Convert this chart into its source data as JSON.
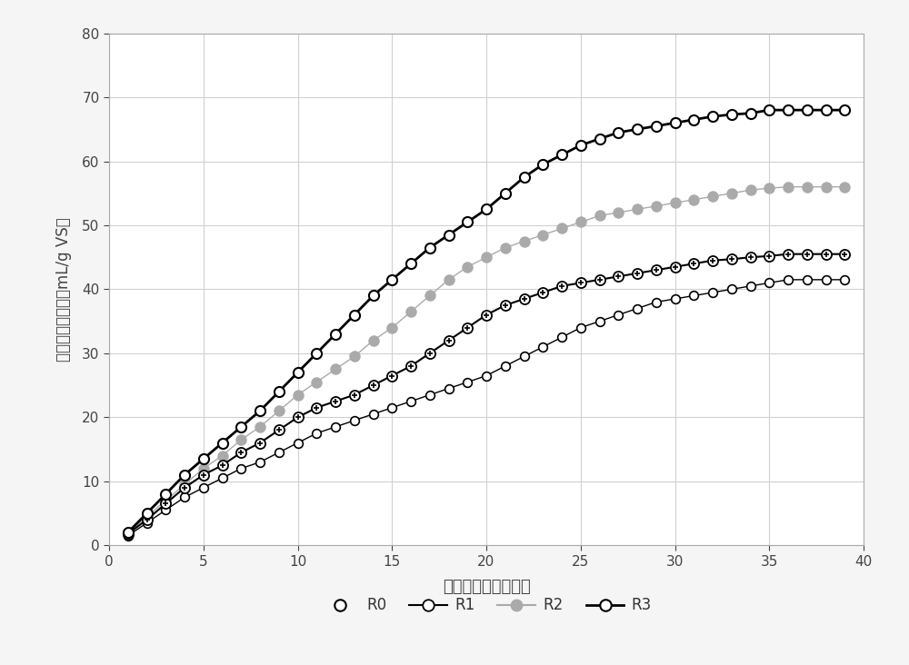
{
  "R0": {
    "x": [
      1,
      2,
      3,
      4,
      5,
      6,
      7,
      8,
      9,
      10,
      11,
      12,
      13,
      14,
      15,
      16,
      17,
      18,
      19,
      20,
      21,
      22,
      23,
      24,
      25,
      26,
      27,
      28,
      29,
      30,
      31,
      32,
      33,
      34,
      35,
      36,
      37,
      38,
      39
    ],
    "y": [
      1.5,
      3.5,
      5.5,
      7.5,
      9.0,
      10.5,
      12.0,
      13.0,
      14.5,
      16.0,
      17.5,
      18.5,
      19.5,
      20.5,
      21.5,
      22.5,
      23.5,
      24.5,
      25.5,
      26.5,
      28.0,
      29.5,
      31.0,
      32.5,
      34.0,
      35.0,
      36.0,
      37.0,
      38.0,
      38.5,
      39.0,
      39.5,
      40.0,
      40.5,
      41.0,
      41.5,
      41.5,
      41.5,
      41.5
    ]
  },
  "R1": {
    "x": [
      1,
      2,
      3,
      4,
      5,
      6,
      7,
      8,
      9,
      10,
      11,
      12,
      13,
      14,
      15,
      16,
      17,
      18,
      19,
      20,
      21,
      22,
      23,
      24,
      25,
      26,
      27,
      28,
      29,
      30,
      31,
      32,
      33,
      34,
      35,
      36,
      37,
      38,
      39
    ],
    "y": [
      1.8,
      4.0,
      6.5,
      9.0,
      11.0,
      12.5,
      14.5,
      16.0,
      18.0,
      20.0,
      21.5,
      22.5,
      23.5,
      25.0,
      26.5,
      28.0,
      30.0,
      32.0,
      34.0,
      36.0,
      37.5,
      38.5,
      39.5,
      40.5,
      41.0,
      41.5,
      42.0,
      42.5,
      43.0,
      43.5,
      44.0,
      44.5,
      44.7,
      45.0,
      45.2,
      45.5,
      45.5,
      45.5,
      45.5
    ]
  },
  "R2": {
    "x": [
      1,
      2,
      3,
      4,
      5,
      6,
      7,
      8,
      9,
      10,
      11,
      12,
      13,
      14,
      15,
      16,
      17,
      18,
      19,
      20,
      21,
      22,
      23,
      24,
      25,
      26,
      27,
      28,
      29,
      30,
      31,
      32,
      33,
      34,
      35,
      36,
      37,
      38,
      39
    ],
    "y": [
      1.8,
      4.5,
      7.0,
      9.5,
      12.0,
      14.0,
      16.5,
      18.5,
      21.0,
      23.5,
      25.5,
      27.5,
      29.5,
      32.0,
      34.0,
      36.5,
      39.0,
      41.5,
      43.5,
      45.0,
      46.5,
      47.5,
      48.5,
      49.5,
      50.5,
      51.5,
      52.0,
      52.5,
      53.0,
      53.5,
      54.0,
      54.5,
      55.0,
      55.5,
      55.8,
      56.0,
      56.0,
      56.0,
      56.0
    ]
  },
  "R3": {
    "x": [
      1,
      2,
      3,
      4,
      5,
      6,
      7,
      8,
      9,
      10,
      11,
      12,
      13,
      14,
      15,
      16,
      17,
      18,
      19,
      20,
      21,
      22,
      23,
      24,
      25,
      26,
      27,
      28,
      29,
      30,
      31,
      32,
      33,
      34,
      35,
      36,
      37,
      38,
      39
    ],
    "y": [
      2.0,
      5.0,
      8.0,
      11.0,
      13.5,
      16.0,
      18.5,
      21.0,
      24.0,
      27.0,
      30.0,
      33.0,
      36.0,
      39.0,
      41.5,
      44.0,
      46.5,
      48.5,
      50.5,
      52.5,
      55.0,
      57.5,
      59.5,
      61.0,
      62.5,
      63.5,
      64.5,
      65.0,
      65.5,
      66.0,
      66.5,
      67.0,
      67.3,
      67.5,
      68.0,
      68.0,
      68.0,
      68.0,
      68.0
    ]
  },
  "xlabel": "厉氧消化时间（天）",
  "ylabel": "甲烷累积产气量（mL/g VS）",
  "xlim": [
    0,
    40
  ],
  "ylim": [
    0,
    80
  ],
  "xticks": [
    0,
    5,
    10,
    15,
    20,
    25,
    30,
    35,
    40
  ],
  "yticks": [
    0,
    10,
    20,
    30,
    40,
    50,
    60,
    70,
    80
  ],
  "grid_color": "#d0d0d0",
  "bg_color": "#f5f5f5",
  "plot_bg_color": "#ffffff",
  "figsize": [
    10.0,
    7.32
  ],
  "dpi": 100
}
